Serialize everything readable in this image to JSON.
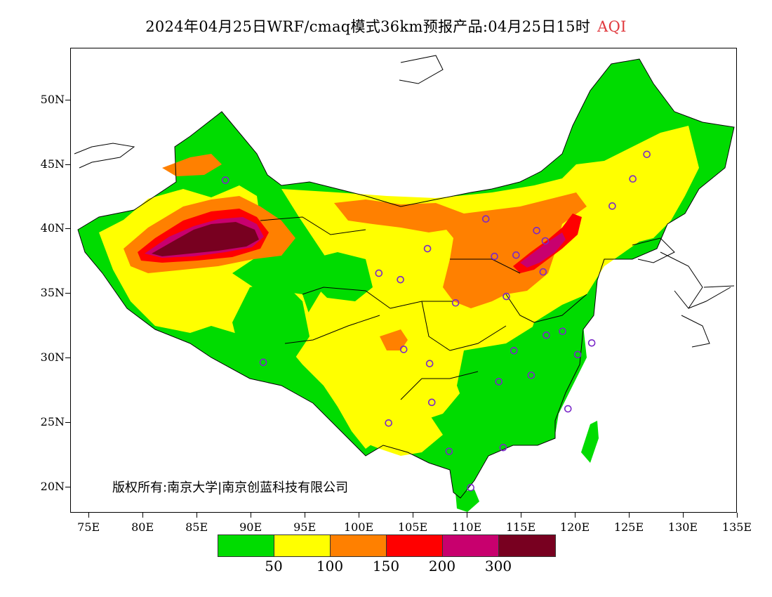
{
  "title": {
    "main": "2024年04月25日WRF/cmaq模式36km预报产品:04月25日15时",
    "product": "AQI"
  },
  "colors": {
    "good": "#00dc00",
    "moderate": "#ffff00",
    "sensitive": "#ff8000",
    "unhealthy": "#ff0000",
    "very_unhealthy": "#c8006e",
    "hazardous": "#780020",
    "boundary": "#000000",
    "station_marker": "#7a28c8"
  },
  "axes": {
    "y_ticks": [
      {
        "lat": 50,
        "label": "50N"
      },
      {
        "lat": 45,
        "label": "45N"
      },
      {
        "lat": 40,
        "label": "40N"
      },
      {
        "lat": 35,
        "label": "35N"
      },
      {
        "lat": 30,
        "label": "30N"
      },
      {
        "lat": 25,
        "label": "25N"
      },
      {
        "lat": 20,
        "label": "20N"
      }
    ],
    "x_ticks": [
      {
        "lon": 75,
        "label": "75E"
      },
      {
        "lon": 80,
        "label": "80E"
      },
      {
        "lon": 85,
        "label": "85E"
      },
      {
        "lon": 90,
        "label": "90E"
      },
      {
        "lon": 95,
        "label": "95E"
      },
      {
        "lon": 100,
        "label": "100E"
      },
      {
        "lon": 105,
        "label": "105E"
      },
      {
        "lon": 110,
        "label": "110E"
      },
      {
        "lon": 115,
        "label": "115E"
      },
      {
        "lon": 120,
        "label": "120E"
      },
      {
        "lon": 125,
        "label": "125E"
      },
      {
        "lon": 130,
        "label": "130E"
      },
      {
        "lon": 135,
        "label": "135E"
      }
    ],
    "lon_range": [
      73.3,
      135
    ],
    "lat_range": [
      18,
      54
    ]
  },
  "copyright": "版权所有:南京大学|南京创蓝科技有限公司",
  "legend": {
    "swatches": [
      "#00dc00",
      "#ffff00",
      "#ff8000",
      "#ff0000",
      "#c8006e",
      "#780020"
    ],
    "labels": [
      {
        "value": "50",
        "edge": 1
      },
      {
        "value": "100",
        "edge": 2
      },
      {
        "value": "150",
        "edge": 3
      },
      {
        "value": "200",
        "edge": 4
      },
      {
        "value": "300",
        "edge": 5
      }
    ]
  },
  "stations": [
    {
      "lon": 87.6,
      "lat": 43.8
    },
    {
      "lon": 91.1,
      "lat": 29.7
    },
    {
      "lon": 101.8,
      "lat": 36.6
    },
    {
      "lon": 103.8,
      "lat": 36.1
    },
    {
      "lon": 106.3,
      "lat": 38.5
    },
    {
      "lon": 111.7,
      "lat": 40.8
    },
    {
      "lon": 112.5,
      "lat": 37.9
    },
    {
      "lon": 114.5,
      "lat": 38.0
    },
    {
      "lon": 116.4,
      "lat": 39.9
    },
    {
      "lon": 117.2,
      "lat": 39.1
    },
    {
      "lon": 117.0,
      "lat": 36.7
    },
    {
      "lon": 113.6,
      "lat": 34.8
    },
    {
      "lon": 108.9,
      "lat": 34.3
    },
    {
      "lon": 104.1,
      "lat": 30.7
    },
    {
      "lon": 106.5,
      "lat": 29.6
    },
    {
      "lon": 106.7,
      "lat": 26.6
    },
    {
      "lon": 102.7,
      "lat": 25.0
    },
    {
      "lon": 108.3,
      "lat": 22.8
    },
    {
      "lon": 113.3,
      "lat": 23.1
    },
    {
      "lon": 110.3,
      "lat": 20.0
    },
    {
      "lon": 112.9,
      "lat": 28.2
    },
    {
      "lon": 114.3,
      "lat": 30.6
    },
    {
      "lon": 115.9,
      "lat": 28.7
    },
    {
      "lon": 117.3,
      "lat": 31.8
    },
    {
      "lon": 118.8,
      "lat": 32.1
    },
    {
      "lon": 120.2,
      "lat": 30.3
    },
    {
      "lon": 121.5,
      "lat": 31.2
    },
    {
      "lon": 119.3,
      "lat": 26.1
    },
    {
      "lon": 123.4,
      "lat": 41.8
    },
    {
      "lon": 125.3,
      "lat": 43.9
    },
    {
      "lon": 126.6,
      "lat": 45.8
    }
  ]
}
